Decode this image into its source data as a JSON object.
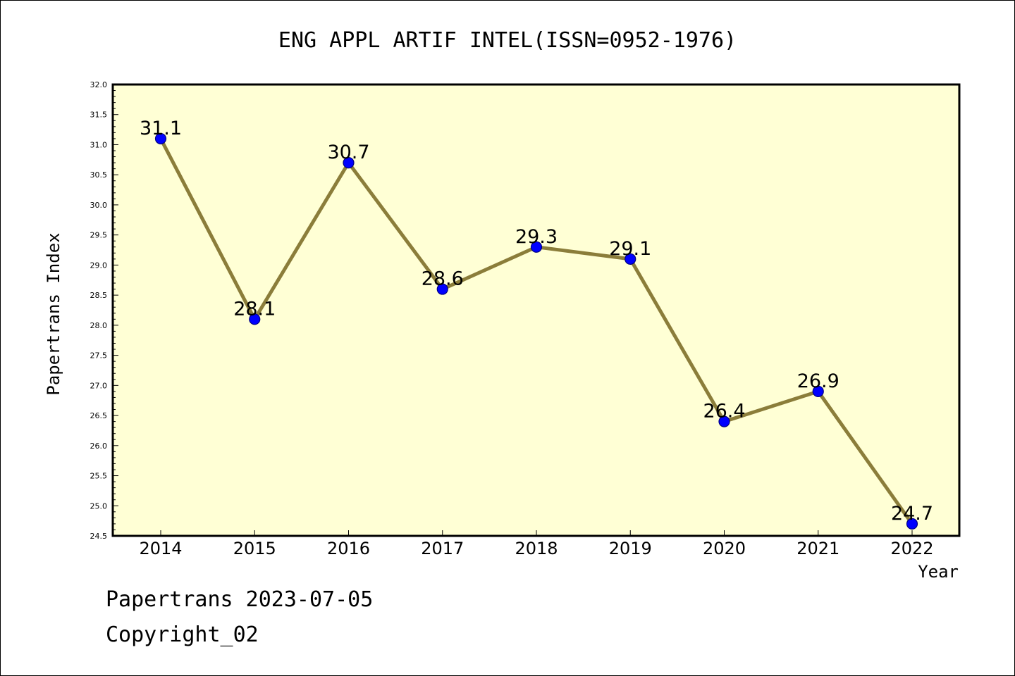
{
  "chart_data": {
    "type": "line",
    "title": "ENG APPL ARTIF INTEL(ISSN=0952-1976)",
    "xlabel": "Year",
    "ylabel": "Papertrans Index",
    "categories": [
      "2014",
      "2015",
      "2016",
      "2017",
      "2018",
      "2019",
      "2020",
      "2021",
      "2022"
    ],
    "values": [
      31.1,
      28.1,
      30.7,
      28.6,
      29.3,
      29.1,
      26.4,
      26.9,
      24.7
    ],
    "data_labels": [
      "31.1",
      "28.1",
      "30.7",
      "28.6",
      "29.3",
      "29.1",
      "26.4",
      "26.9",
      "24.7"
    ],
    "ylim": [
      24.5,
      32.0
    ],
    "yticks": [
      "24.5",
      "25.0",
      "25.5",
      "26.0",
      "26.5",
      "27.0",
      "27.5",
      "28.0",
      "28.5",
      "29.0",
      "29.5",
      "30.0",
      "30.5",
      "31.0",
      "31.5",
      "32.0"
    ],
    "grid": false,
    "colors": {
      "plot_background": "#ffffd5",
      "line": "#8b7d3a",
      "marker": "#0000ff",
      "marker_edge": "#000080"
    }
  },
  "footer": {
    "line1": "Papertrans 2023-07-05",
    "line2": "Copyright_02"
  }
}
